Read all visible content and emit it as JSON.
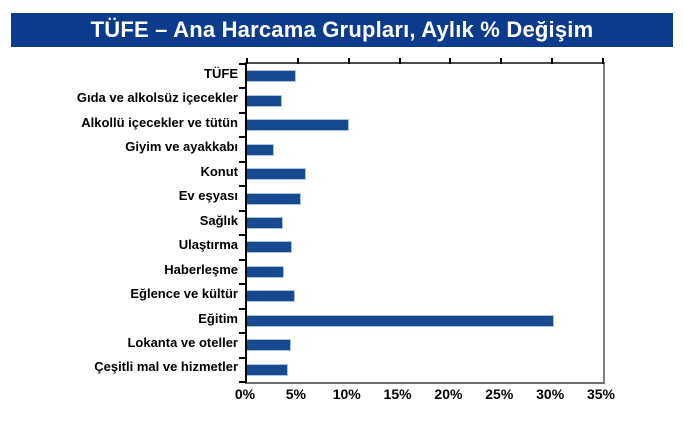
{
  "title": "TÜFE – Ana Harcama Grupları, Aylık % Değişim",
  "colors": {
    "banner_bg": "#0d3b8c",
    "title_text": "#ffffff",
    "bar_fill": "#16498f",
    "bar_border": "#a8c4e0",
    "plot_border": "#7f7f7f",
    "axis_line": "#000000"
  },
  "chart_data": {
    "type": "bar",
    "orientation": "horizontal",
    "title": "TÜFE – Ana Harcama Grupları, Aylık % Değişim",
    "categories": [
      "TÜFE",
      "Gıda ve alkolsüz içecekler",
      "Alkollü içecekler ve tütün",
      "Giyim ve ayakkabı",
      "Konut",
      "Ev eşyası",
      "Sağlık",
      "Ulaştırma",
      "Haberleşme",
      "Eğlence ve kültür",
      "Eğitim",
      "Lokanta ve oteller",
      "Çeşitli mal ve hizmetler"
    ],
    "values": [
      4.8,
      3.4,
      10.0,
      2.7,
      5.8,
      5.3,
      3.5,
      4.4,
      3.6,
      4.7,
      30.2,
      4.3,
      4.0
    ],
    "unit": "%",
    "xlim": [
      0,
      35
    ],
    "x_ticks": [
      0,
      5,
      10,
      15,
      20,
      25,
      30,
      35
    ],
    "x_tick_labels": [
      "0%",
      "5%",
      "10%",
      "15%",
      "20%",
      "25%",
      "30%",
      "35%"
    ],
    "xlabel": "",
    "ylabel": "",
    "grid": false,
    "legend": false
  }
}
